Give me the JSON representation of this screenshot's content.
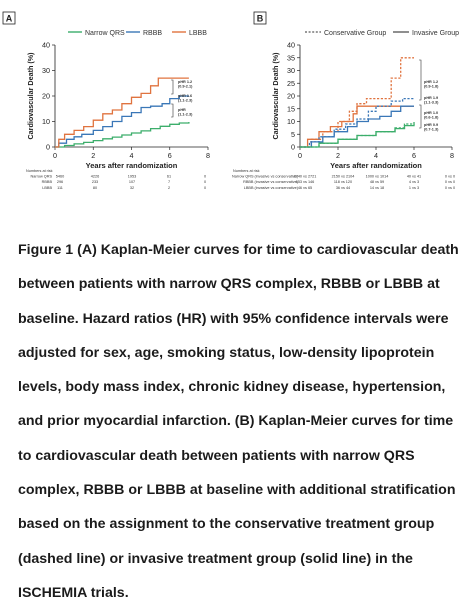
{
  "chart_data": [
    {
      "type": "line",
      "panel_label": "A",
      "ylabel": "Cardiovascular Death (%)",
      "xlabel": "Years after randomization",
      "xlim": [
        0,
        8
      ],
      "ylim": [
        0,
        40
      ],
      "x_ticks": [
        0,
        2,
        4,
        6,
        8
      ],
      "y_ticks": [
        0,
        10,
        20,
        30,
        40
      ],
      "legend_position": "top",
      "series": [
        {
          "name": "Narrow QRS",
          "color": "#3cae6b",
          "style": "solid",
          "x": [
            0,
            0.5,
            1,
            1.5,
            2,
            2.5,
            3,
            3.5,
            4,
            4.5,
            5,
            5.5,
            6,
            6.5,
            7
          ],
          "y": [
            0,
            0.6,
            1.2,
            1.8,
            2.5,
            3.2,
            3.9,
            4.7,
            5.5,
            6.3,
            7.2,
            8.1,
            8.9,
            9.4,
            9.8
          ]
        },
        {
          "name": "RBBB",
          "color": "#3a77b7",
          "style": "solid",
          "x": [
            0,
            0.2,
            0.6,
            1,
            1.4,
            2,
            2.5,
            3,
            3.5,
            4,
            4.5,
            5,
            5.6,
            6,
            6.5,
            7
          ],
          "y": [
            0,
            1.5,
            3,
            4,
            5,
            6.5,
            8,
            10,
            12,
            13.5,
            15.5,
            16,
            17,
            19,
            20,
            20
          ]
        },
        {
          "name": "LBBB",
          "color": "#e0733f",
          "style": "solid",
          "x": [
            0,
            0.2,
            0.5,
            1,
            1.5,
            2,
            2.5,
            3,
            3.5,
            4,
            4.5,
            5,
            5.4,
            6,
            7
          ],
          "y": [
            0,
            3,
            5,
            6.5,
            8,
            10.5,
            13,
            14.5,
            17,
            19.5,
            21,
            24,
            27,
            27,
            27
          ]
        }
      ],
      "annotations": [
        {
          "label": "pHR 1.2",
          "detail": "(0.9-2.1)"
        },
        {
          "label": "pHR 1.6",
          "detail": "(1.1-2.3)"
        },
        {
          "label": "pHR",
          "detail": "(1.1-2.3)"
        }
      ],
      "risk_table": {
        "title": "Numbers at risk",
        "rows": [
          {
            "label": "Narrow QRS",
            "values": [
              "5460",
              "4226",
              "1953",
              "61",
              "0"
            ]
          },
          {
            "label": "RBBB",
            "values": [
              "296",
              "233",
              "107",
              "7",
              "0"
            ]
          },
          {
            "label": "LBBB",
            "values": [
              "111",
              "80",
              "32",
              "2",
              "0"
            ]
          }
        ]
      }
    },
    {
      "type": "line",
      "panel_label": "B",
      "ylabel": "Cardiovascular Death (%)",
      "xlabel": "Years after randomization",
      "xlim": [
        0,
        8
      ],
      "ylim": [
        0,
        40
      ],
      "x_ticks": [
        0,
        2,
        4,
        6,
        8
      ],
      "y_ticks": [
        0,
        5,
        10,
        15,
        20,
        25,
        30,
        35,
        40
      ],
      "legend_position": "top",
      "legend": [
        {
          "name": "Conservative Group",
          "style": "dashed"
        },
        {
          "name": "Invasive Group",
          "style": "solid"
        }
      ],
      "series": [
        {
          "color": "#e0733f",
          "style": "dashed",
          "x": [
            0,
            0.6,
            1.2,
            2,
            2.6,
            3,
            3.5,
            4,
            4.4,
            4.8,
            5.3,
            6
          ],
          "y": [
            0,
            3,
            6,
            10,
            14,
            17,
            19,
            19,
            19,
            27,
            35,
            35
          ]
        },
        {
          "color": "#e0733f",
          "style": "solid",
          "x": [
            0,
            0.4,
            1,
            1.6,
            2.2,
            2.8,
            3,
            4,
            4.6,
            5.4,
            6
          ],
          "y": [
            0,
            3,
            6,
            8,
            10,
            13,
            16,
            16,
            16,
            16,
            16
          ]
        },
        {
          "color": "#3a77b7",
          "style": "dashed",
          "x": [
            0,
            0.5,
            1,
            1.8,
            2.4,
            3,
            3.6,
            4,
            4.8,
            5.4,
            6
          ],
          "y": [
            0,
            2,
            4,
            7,
            9,
            11,
            14,
            16,
            18,
            19,
            19
          ]
        },
        {
          "color": "#3a77b7",
          "style": "solid",
          "x": [
            0,
            0.6,
            1.2,
            1.8,
            2.5,
            3,
            3.6,
            4.2,
            4.8,
            5.3,
            6
          ],
          "y": [
            0,
            2,
            4,
            6,
            8,
            10,
            11,
            12,
            14,
            16,
            16
          ]
        },
        {
          "color": "#3cae6b",
          "style": "dashed",
          "x": [
            0,
            1,
            2,
            3,
            4,
            5,
            5.5,
            6
          ],
          "y": [
            0,
            1.5,
            3,
            4.5,
            6,
            7.5,
            9,
            10
          ]
        },
        {
          "color": "#3cae6b",
          "style": "solid",
          "x": [
            0,
            1,
            2,
            3,
            4,
            5,
            5.5,
            6
          ],
          "y": [
            0,
            1.5,
            3,
            4.5,
            6,
            7.2,
            8.4,
            9
          ]
        }
      ],
      "annotations": [
        {
          "label": "pHR 1.2",
          "detail": "(0.9-1.8)"
        },
        {
          "label": "pHR 1.9",
          "detail": "(1.1-3.3)"
        },
        {
          "label": "pHR 1.0",
          "detail": "(0.6-1.8)"
        },
        {
          "label": "pHR 0.9",
          "detail": "(0.7-1.3)"
        }
      ],
      "risk_table": {
        "title": "Numbers at risk",
        "rows": [
          {
            "label": "Narrow QRS (invasive vs conservative)",
            "values": [
              "2740 vs 2721",
              "2150 vs 2104",
              "1000 vs 1014",
              "40 vs 41",
              "0 vs 0"
            ]
          },
          {
            "label": "RBBB (invasive vs conservative)",
            "values": [
              "153 vs 146",
              "118 vs 120",
              "48 vs 59",
              "4 vs 3",
              "0 vs 0"
            ]
          },
          {
            "label": "LBBB (invasive vs conservative)",
            "values": [
              "46 vs 65",
              "36 vs 44",
              "14 vs 18",
              "1 vs 3",
              "0 vs 0"
            ]
          }
        ]
      }
    }
  ],
  "caption": {
    "label": "Figure 1",
    "text": " (A) Kaplan-Meier curves for time to cardiovascular death between patients with narrow QRS complex, RBBB or LBBB at baseline. Hazard ratios (HR) with 95% confidence intervals were adjusted for sex, age, smoking status, low-density lipoprotein levels, body mass index, chronic kidney disease, hypertension, and prior myocardial infarction. (B) Kaplan-Meier curves for time to cardiovascular death between patients with narrow QRS complex, RBBB or LBBB at baseline with additional stratification based on the assignment to the conservative treatment group (dashed line) or invasive treatment group (solid line) in the ISCHEMIA trials."
  }
}
